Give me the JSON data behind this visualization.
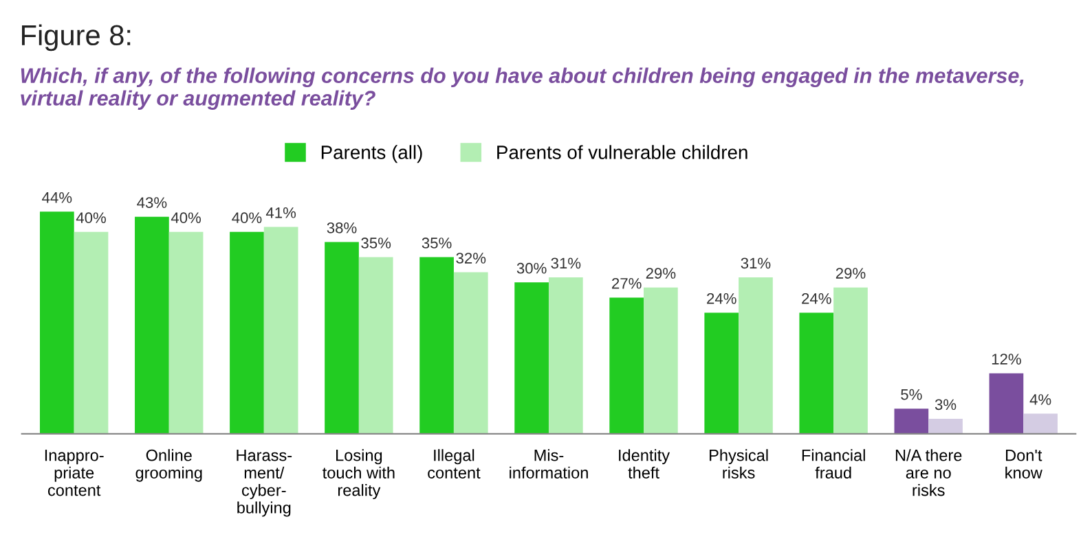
{
  "chart_data": {
    "type": "bar",
    "title": "Figure 8:",
    "subtitle": "Which, if any, of the following concerns do you have about children being engaged in the metaverse, virtual reality or augmented reality?",
    "categories": [
      "Inappro-\npriate\ncontent",
      "Online\ngrooming",
      "Harass-\nment/\ncyber-\nbullying",
      "Losing\ntouch with\nreality",
      "Illegal\ncontent",
      "Mis-\ninformation",
      "Identity\ntheft",
      "Physical\nrisks",
      "Financial\nfraud",
      "N/A there\nare no\nrisks",
      "Don't\nknow"
    ],
    "series": [
      {
        "name": "Parents (all)",
        "color": "#22cc22",
        "colors": [
          "#22cc22",
          "#22cc22",
          "#22cc22",
          "#22cc22",
          "#22cc22",
          "#22cc22",
          "#22cc22",
          "#22cc22",
          "#22cc22",
          "#7a4e9e",
          "#7a4e9e"
        ],
        "values": [
          44,
          43,
          40,
          38,
          35,
          30,
          27,
          24,
          24,
          5,
          12
        ],
        "value_labels": [
          "44%",
          "43%",
          "40%",
          "38%",
          "35%",
          "30%",
          "27%",
          "24%",
          "24%",
          "5%",
          "12%"
        ]
      },
      {
        "name": "Parents of vulnerable children",
        "color": "#b3eeb3",
        "colors": [
          "#b3eeb3",
          "#b3eeb3",
          "#b3eeb3",
          "#b3eeb3",
          "#b3eeb3",
          "#b3eeb3",
          "#b3eeb3",
          "#b3eeb3",
          "#b3eeb3",
          "#d4cce3",
          "#d4cce3"
        ],
        "values": [
          40,
          40,
          41,
          35,
          32,
          31,
          29,
          31,
          29,
          3,
          4
        ],
        "value_labels": [
          "40%",
          "40%",
          "41%",
          "35%",
          "32%",
          "31%",
          "29%",
          "31%",
          "29%",
          "3%",
          "4%"
        ]
      }
    ],
    "legend": "top"
  }
}
